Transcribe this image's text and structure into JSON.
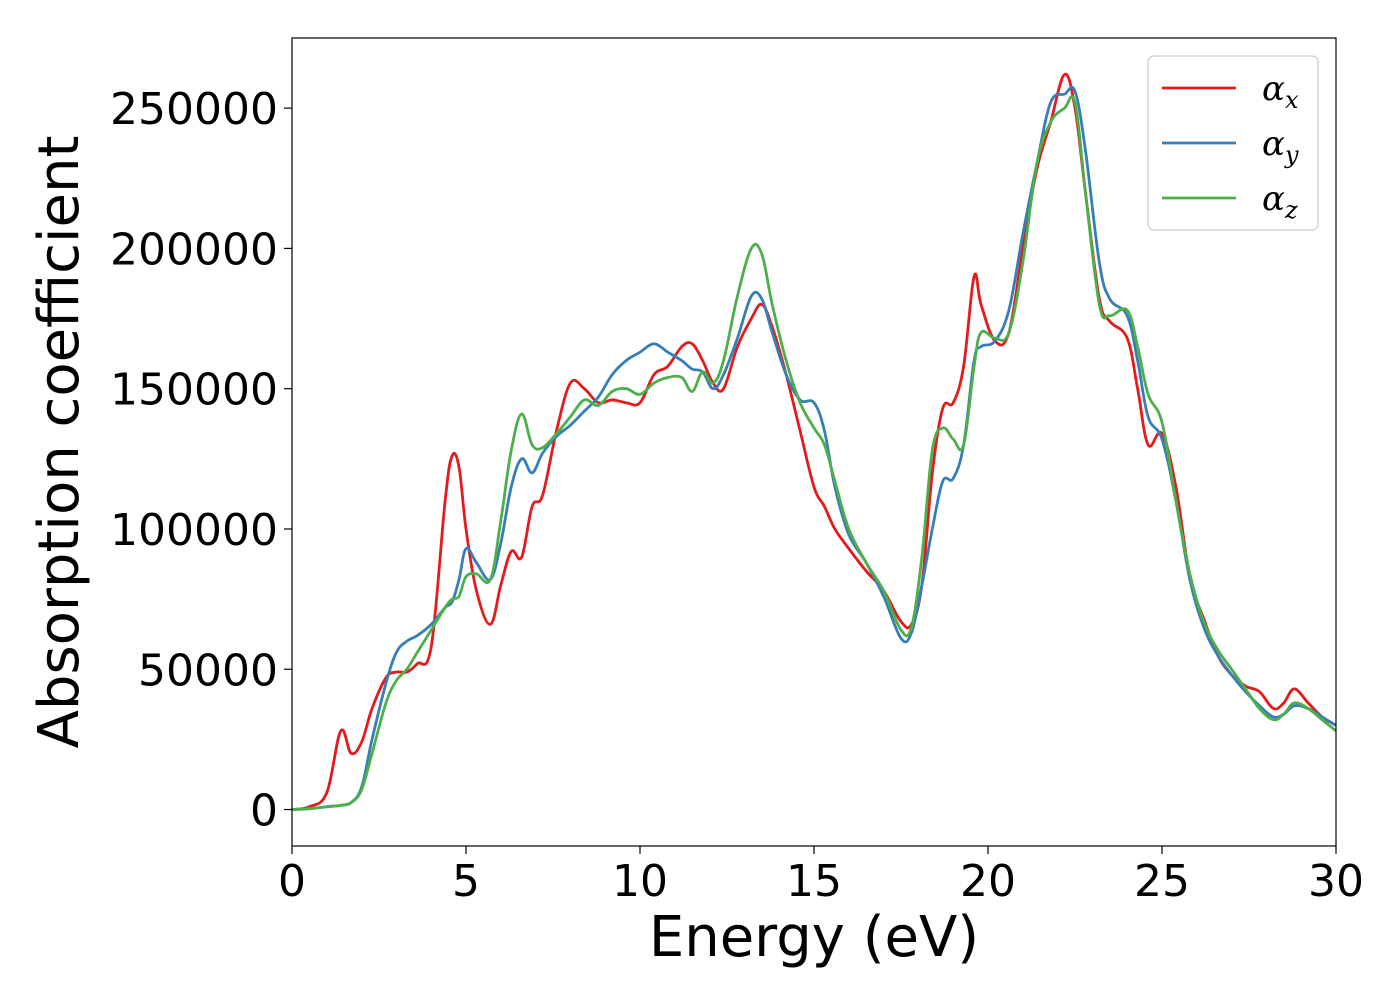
{
  "chart_data": {
    "type": "line",
    "title": "",
    "xlabel": "Energy (eV)",
    "ylabel": "Absorption coefficient",
    "xlim": [
      0,
      30
    ],
    "ylim": [
      -13000,
      275000
    ],
    "xticks": [
      0,
      5,
      10,
      15,
      20,
      25,
      30
    ],
    "xtick_labels": [
      "0",
      "5",
      "10",
      "15",
      "20",
      "25",
      "30"
    ],
    "yticks": [
      0,
      50000,
      100000,
      150000,
      200000,
      250000
    ],
    "ytick_labels": [
      "0",
      "50000",
      "100000",
      "150000",
      "200000",
      "250000"
    ],
    "grid": false,
    "legend_position": "upper-right",
    "series": [
      {
        "name": "αx",
        "legend_base": "α",
        "legend_sub": "x",
        "color": "#e41a1c",
        "x": [
          0,
          0.5,
          1.0,
          1.4,
          1.7,
          2.0,
          2.3,
          2.7,
          3.0,
          3.3,
          3.6,
          4.0,
          4.4,
          4.6,
          4.8,
          5.0,
          5.3,
          5.7,
          6.0,
          6.3,
          6.6,
          6.9,
          7.2,
          7.6,
          8.0,
          8.4,
          8.8,
          9.2,
          9.6,
          10.0,
          10.4,
          10.8,
          11.2,
          11.5,
          11.8,
          12.1,
          12.4,
          12.8,
          13.2,
          13.5,
          13.8,
          14.2,
          14.6,
          15.0,
          15.3,
          15.6,
          16.0,
          16.5,
          17.0,
          17.5,
          17.8,
          18.1,
          18.4,
          18.7,
          19.0,
          19.3,
          19.6,
          19.8,
          20.2,
          20.6,
          21.0,
          21.4,
          21.8,
          22.2,
          22.5,
          22.8,
          23.2,
          23.5,
          24.0,
          24.3,
          24.6,
          25.0,
          25.4,
          25.8,
          26.2,
          26.6,
          27.0,
          27.4,
          27.8,
          28.2,
          28.5,
          28.8,
          29.2,
          29.6,
          30.0
        ],
        "values": [
          0,
          1000,
          6000,
          28000,
          20000,
          24000,
          36000,
          47000,
          49000,
          49000,
          52000,
          58000,
          110000,
          126000,
          122000,
          100000,
          78000,
          66000,
          80000,
          92000,
          90000,
          108000,
          112000,
          135000,
          152000,
          150000,
          145000,
          146000,
          145000,
          145000,
          155000,
          158000,
          165000,
          166000,
          160000,
          152000,
          150000,
          165000,
          175000,
          180000,
          172000,
          155000,
          135000,
          115000,
          108000,
          100000,
          93000,
          85000,
          78000,
          67000,
          66000,
          80000,
          120000,
          143000,
          145000,
          158000,
          190000,
          180000,
          167000,
          170000,
          200000,
          228000,
          245000,
          262000,
          250000,
          220000,
          182000,
          174000,
          168000,
          150000,
          130000,
          134000,
          115000,
          83000,
          68000,
          55000,
          48000,
          44000,
          42000,
          36000,
          38000,
          43000,
          38000,
          33000,
          30000
        ]
      },
      {
        "name": "αy",
        "legend_base": "α",
        "legend_sub": "y",
        "color": "#377eb8",
        "x": [
          0,
          0.5,
          1.0,
          1.4,
          1.7,
          2.0,
          2.3,
          2.7,
          3.0,
          3.3,
          3.6,
          4.0,
          4.4,
          4.6,
          4.8,
          5.0,
          5.3,
          5.7,
          6.0,
          6.3,
          6.6,
          6.9,
          7.2,
          7.6,
          8.0,
          8.4,
          8.8,
          9.2,
          9.6,
          10.0,
          10.4,
          10.8,
          11.2,
          11.5,
          11.8,
          12.1,
          12.4,
          12.8,
          13.2,
          13.5,
          13.8,
          14.2,
          14.6,
          15.0,
          15.3,
          15.6,
          16.0,
          16.5,
          17.0,
          17.5,
          17.8,
          18.1,
          18.4,
          18.7,
          19.0,
          19.3,
          19.6,
          19.8,
          20.2,
          20.6,
          21.0,
          21.4,
          21.8,
          22.2,
          22.5,
          22.8,
          23.2,
          23.5,
          24.0,
          24.3,
          24.6,
          25.0,
          25.4,
          25.8,
          26.2,
          26.6,
          27.0,
          27.4,
          27.8,
          28.2,
          28.5,
          28.8,
          29.2,
          29.6,
          30.0
        ],
        "values": [
          0,
          300,
          1000,
          1500,
          2500,
          8000,
          25000,
          45000,
          56000,
          60000,
          62000,
          66000,
          72000,
          74000,
          82000,
          93000,
          88000,
          82000,
          95000,
          115000,
          125000,
          120000,
          127000,
          133000,
          137000,
          142000,
          147000,
          155000,
          160000,
          163000,
          166000,
          163000,
          160000,
          157000,
          156000,
          150000,
          155000,
          168000,
          183000,
          182000,
          170000,
          155000,
          146000,
          145000,
          135000,
          115000,
          98000,
          88000,
          76000,
          61000,
          63000,
          80000,
          100000,
          117000,
          118000,
          130000,
          160000,
          165000,
          167000,
          178000,
          205000,
          230000,
          252000,
          255000,
          256000,
          235000,
          195000,
          182000,
          176000,
          160000,
          140000,
          132000,
          110000,
          82000,
          65000,
          55000,
          48000,
          42000,
          37000,
          33000,
          34000,
          37000,
          36000,
          33000,
          30000
        ]
      },
      {
        "name": "αz",
        "legend_base": "α",
        "legend_sub": "z",
        "color": "#4daf4a",
        "x": [
          0,
          0.5,
          1.0,
          1.4,
          1.7,
          2.0,
          2.3,
          2.7,
          3.0,
          3.3,
          3.6,
          4.0,
          4.4,
          4.6,
          4.8,
          5.0,
          5.3,
          5.7,
          6.0,
          6.3,
          6.6,
          6.9,
          7.2,
          7.6,
          8.0,
          8.4,
          8.8,
          9.2,
          9.6,
          10.0,
          10.4,
          10.8,
          11.2,
          11.5,
          11.8,
          12.1,
          12.4,
          12.8,
          13.2,
          13.5,
          13.8,
          14.2,
          14.6,
          15.0,
          15.3,
          15.6,
          16.0,
          16.5,
          17.0,
          17.5,
          17.8,
          18.1,
          18.4,
          18.7,
          19.0,
          19.3,
          19.6,
          19.8,
          20.2,
          20.6,
          21.0,
          21.4,
          21.8,
          22.2,
          22.5,
          22.8,
          23.2,
          23.5,
          24.0,
          24.3,
          24.6,
          25.0,
          25.4,
          25.8,
          26.2,
          26.6,
          27.0,
          27.4,
          27.8,
          28.2,
          28.5,
          28.8,
          29.2,
          29.6,
          30.0
        ],
        "values": [
          0,
          300,
          1000,
          1500,
          2500,
          7000,
          20000,
          38000,
          46000,
          50000,
          56000,
          64000,
          72000,
          75000,
          76000,
          83000,
          84000,
          82000,
          103000,
          128000,
          141000,
          130000,
          129000,
          134000,
          140000,
          146000,
          144000,
          149000,
          150000,
          148000,
          152000,
          154000,
          154000,
          149000,
          156000,
          152000,
          160000,
          183000,
          200000,
          198000,
          180000,
          160000,
          145000,
          136000,
          130000,
          117000,
          100000,
          88000,
          78000,
          64000,
          65000,
          90000,
          128000,
          136000,
          132000,
          130000,
          158000,
          170000,
          168000,
          170000,
          195000,
          230000,
          245000,
          250000,
          252000,
          220000,
          180000,
          176000,
          178000,
          165000,
          148000,
          138000,
          110000,
          84000,
          67000,
          57000,
          50000,
          43000,
          36000,
          32000,
          34000,
          38000,
          36000,
          32000,
          28000
        ]
      }
    ]
  }
}
